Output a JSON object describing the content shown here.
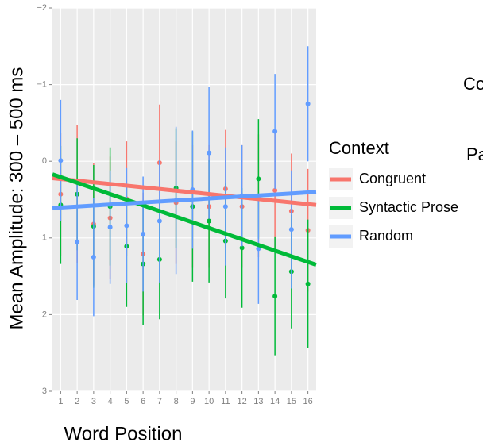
{
  "chart_data": {
    "type": "errorbar",
    "x_label": "Word Position",
    "y_label": "Mean Amplitude: 300 – 500 ms",
    "x": [
      1,
      2,
      3,
      4,
      5,
      6,
      7,
      8,
      9,
      10,
      11,
      12,
      13,
      14,
      15,
      16
    ],
    "xlim": [
      0.5,
      16.5
    ],
    "ylim": [
      -2,
      3
    ],
    "y_reversed": true,
    "yticks": [
      {
        "value": -2,
        "label": "−2"
      },
      {
        "value": -1,
        "label": "−1"
      },
      0,
      1,
      2,
      3
    ],
    "grid": true,
    "legend_title": "Context",
    "legend_position": "right",
    "series": [
      {
        "name": "Congruent",
        "color": "#f8766d",
        "values": [
          0.43,
          0.43,
          0.82,
          0.74,
          0.49,
          1.21,
          0.02,
          0.54,
          0.59,
          0.59,
          0.36,
          0.59,
          0.45,
          0.38,
          0.65,
          0.9
        ],
        "errors": [
          0.8,
          0.9,
          0.8,
          0.8,
          0.75,
          0.8,
          0.76,
          0.8,
          0.8,
          0.8,
          0.77,
          0.8,
          0.8,
          0.8,
          0.75,
          0.8
        ],
        "fit": [
          0.22,
          0.57
        ]
      },
      {
        "name": "Syntactic Prose",
        "color": "#00ba38",
        "values": [
          0.57,
          0.43,
          0.85,
          0.59,
          1.11,
          1.34,
          1.28,
          0.35,
          0.59,
          0.78,
          1.04,
          1.13,
          0.23,
          1.76,
          1.44,
          1.6
        ],
        "errors": [
          0.77,
          0.73,
          0.8,
          0.77,
          0.79,
          0.8,
          0.78,
          0.78,
          0.98,
          0.8,
          0.75,
          0.78,
          0.78,
          0.77,
          0.74,
          0.84
        ],
        "fit": [
          0.17,
          1.35
        ]
      },
      {
        "name": "Random",
        "color": "#619cff",
        "values": [
          -0.01,
          1.05,
          1.25,
          0.86,
          0.84,
          0.95,
          0.78,
          0.51,
          0.37,
          -0.11,
          0.59,
          0.45,
          1.14,
          -0.39,
          0.89,
          -0.75
        ],
        "errors": [
          0.79,
          0.76,
          0.77,
          0.74,
          0.75,
          0.75,
          0.8,
          0.96,
          0.77,
          0.86,
          0.77,
          0.66,
          0.72,
          0.75,
          0.77,
          0.75
        ],
        "fit": [
          0.61,
          0.4
        ]
      }
    ],
    "clipped_texts": [
      "Co",
      "Pa"
    ]
  }
}
